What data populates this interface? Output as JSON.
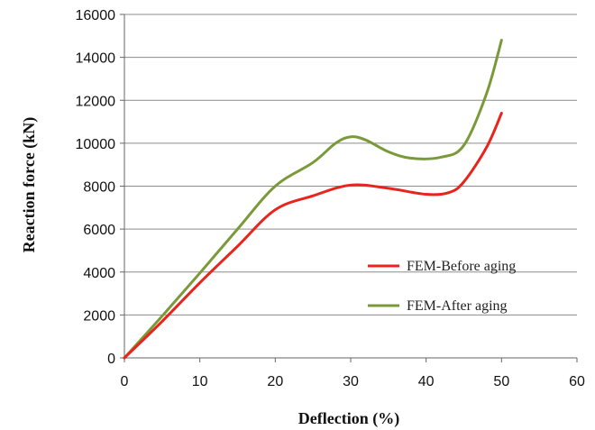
{
  "chart_data": {
    "type": "line",
    "title": "",
    "xlabel": "Deflection (%)",
    "ylabel": "Reaction force (kN)",
    "xlim": [
      0,
      60
    ],
    "ylim": [
      0,
      16000
    ],
    "x_ticks": [
      0,
      10,
      20,
      30,
      40,
      50,
      60
    ],
    "y_ticks": [
      0,
      2000,
      4000,
      6000,
      8000,
      10000,
      12000,
      14000,
      16000
    ],
    "grid": "horizontal",
    "legend_position": "right",
    "series": [
      {
        "name": "FEM-Before aging",
        "color": "#e8241c",
        "points": [
          [
            0,
            0
          ],
          [
            5,
            1700
          ],
          [
            10,
            3500
          ],
          [
            15,
            5200
          ],
          [
            20,
            6900
          ],
          [
            25,
            7550
          ],
          [
            30,
            8050
          ],
          [
            35,
            7900
          ],
          [
            40,
            7620
          ],
          [
            43,
            7700
          ],
          [
            45,
            8200
          ],
          [
            48,
            9800
          ],
          [
            50,
            11400
          ]
        ]
      },
      {
        "name": "FEM-After aging",
        "color": "#7a9a3a",
        "points": [
          [
            0,
            0
          ],
          [
            5,
            1950
          ],
          [
            10,
            3950
          ],
          [
            15,
            6000
          ],
          [
            20,
            8000
          ],
          [
            25,
            9100
          ],
          [
            28,
            10000
          ],
          [
            30,
            10300
          ],
          [
            32,
            10150
          ],
          [
            35,
            9600
          ],
          [
            38,
            9300
          ],
          [
            42,
            9350
          ],
          [
            45,
            9900
          ],
          [
            48,
            12300
          ],
          [
            50,
            14800
          ]
        ]
      }
    ]
  }
}
